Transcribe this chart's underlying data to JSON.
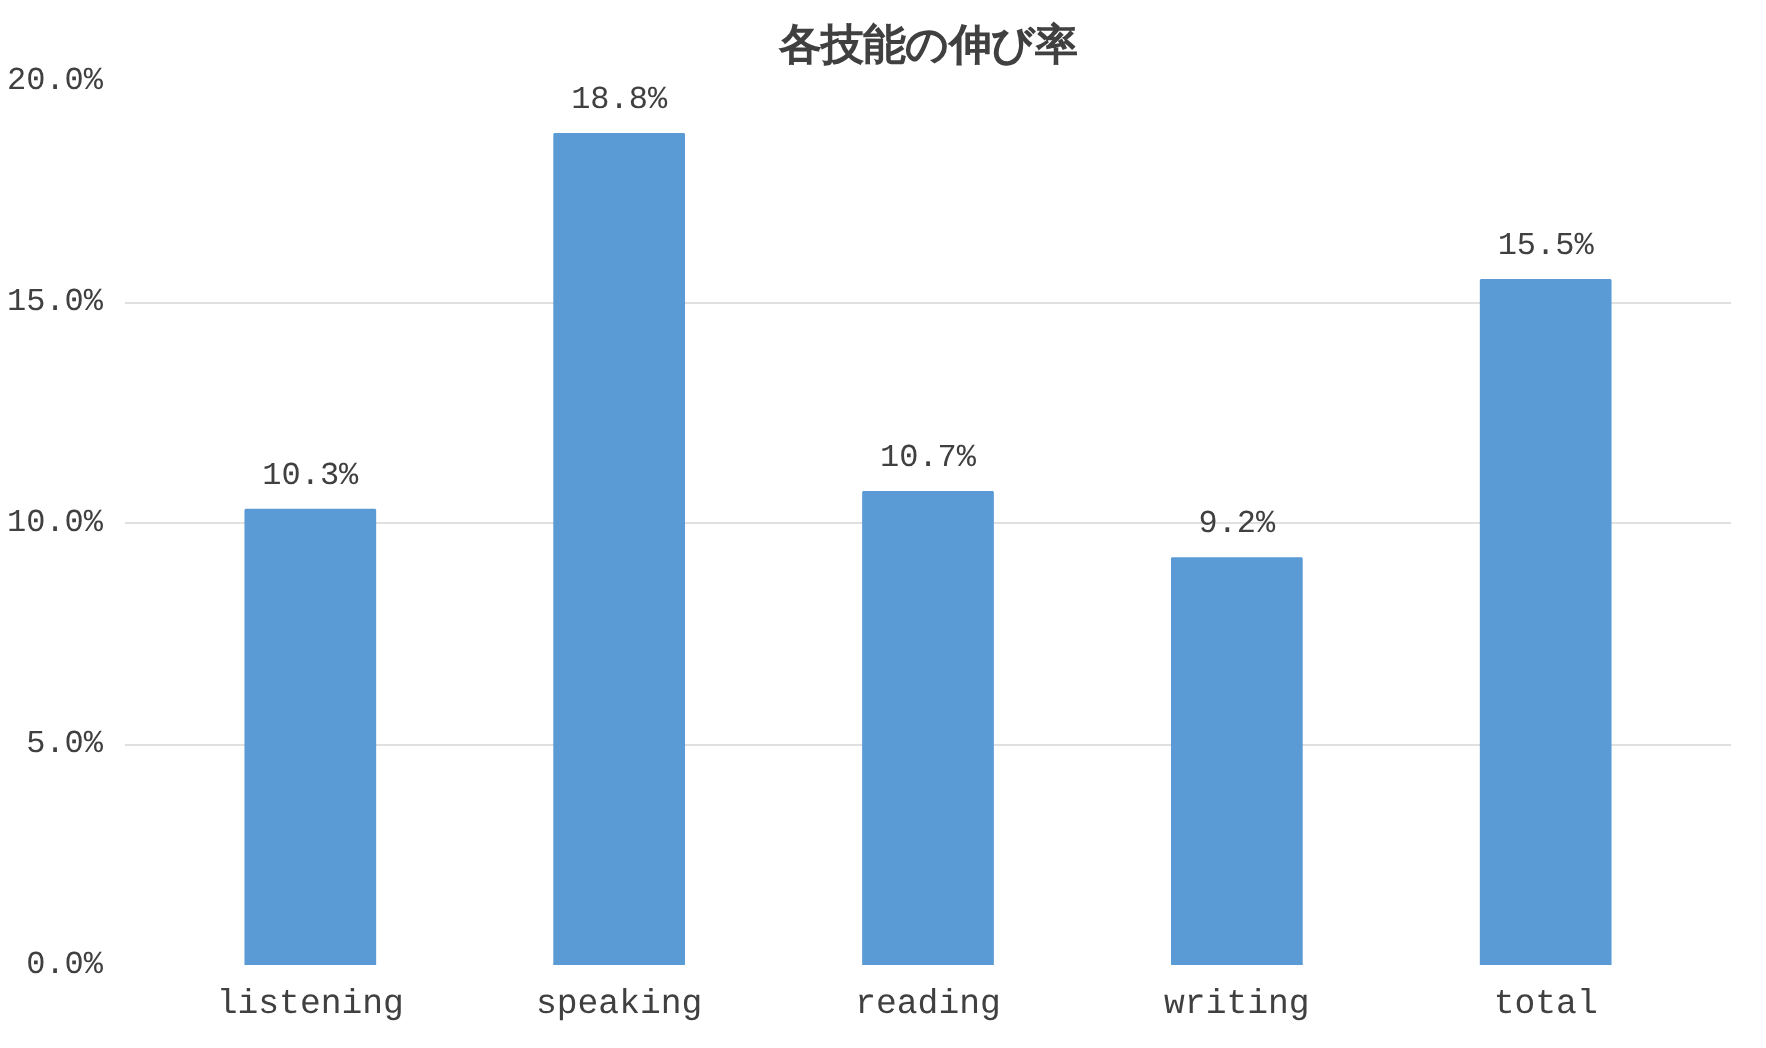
{
  "chart_data": {
    "type": "bar",
    "title": "各技能の伸び率",
    "categories": [
      "listening",
      "speaking",
      "reading",
      "writing",
      "total"
    ],
    "values": [
      10.3,
      18.8,
      10.7,
      9.2,
      15.5
    ],
    "color": "#5b9bd5",
    "value_labels": [
      "10.3%",
      "18.8%",
      "10.7%",
      "9.2%",
      "15.5%"
    ],
    "ylim": [
      0,
      20
    ],
    "yticks": [
      {
        "value": 0,
        "label": "0.0%"
      },
      {
        "value": 5,
        "label": "5.0%"
      },
      {
        "value": 10,
        "label": "10.0%"
      },
      {
        "value": 15,
        "label": "15.0%"
      },
      {
        "value": 20,
        "label": "20.0%"
      }
    ],
    "grid": "y"
  }
}
